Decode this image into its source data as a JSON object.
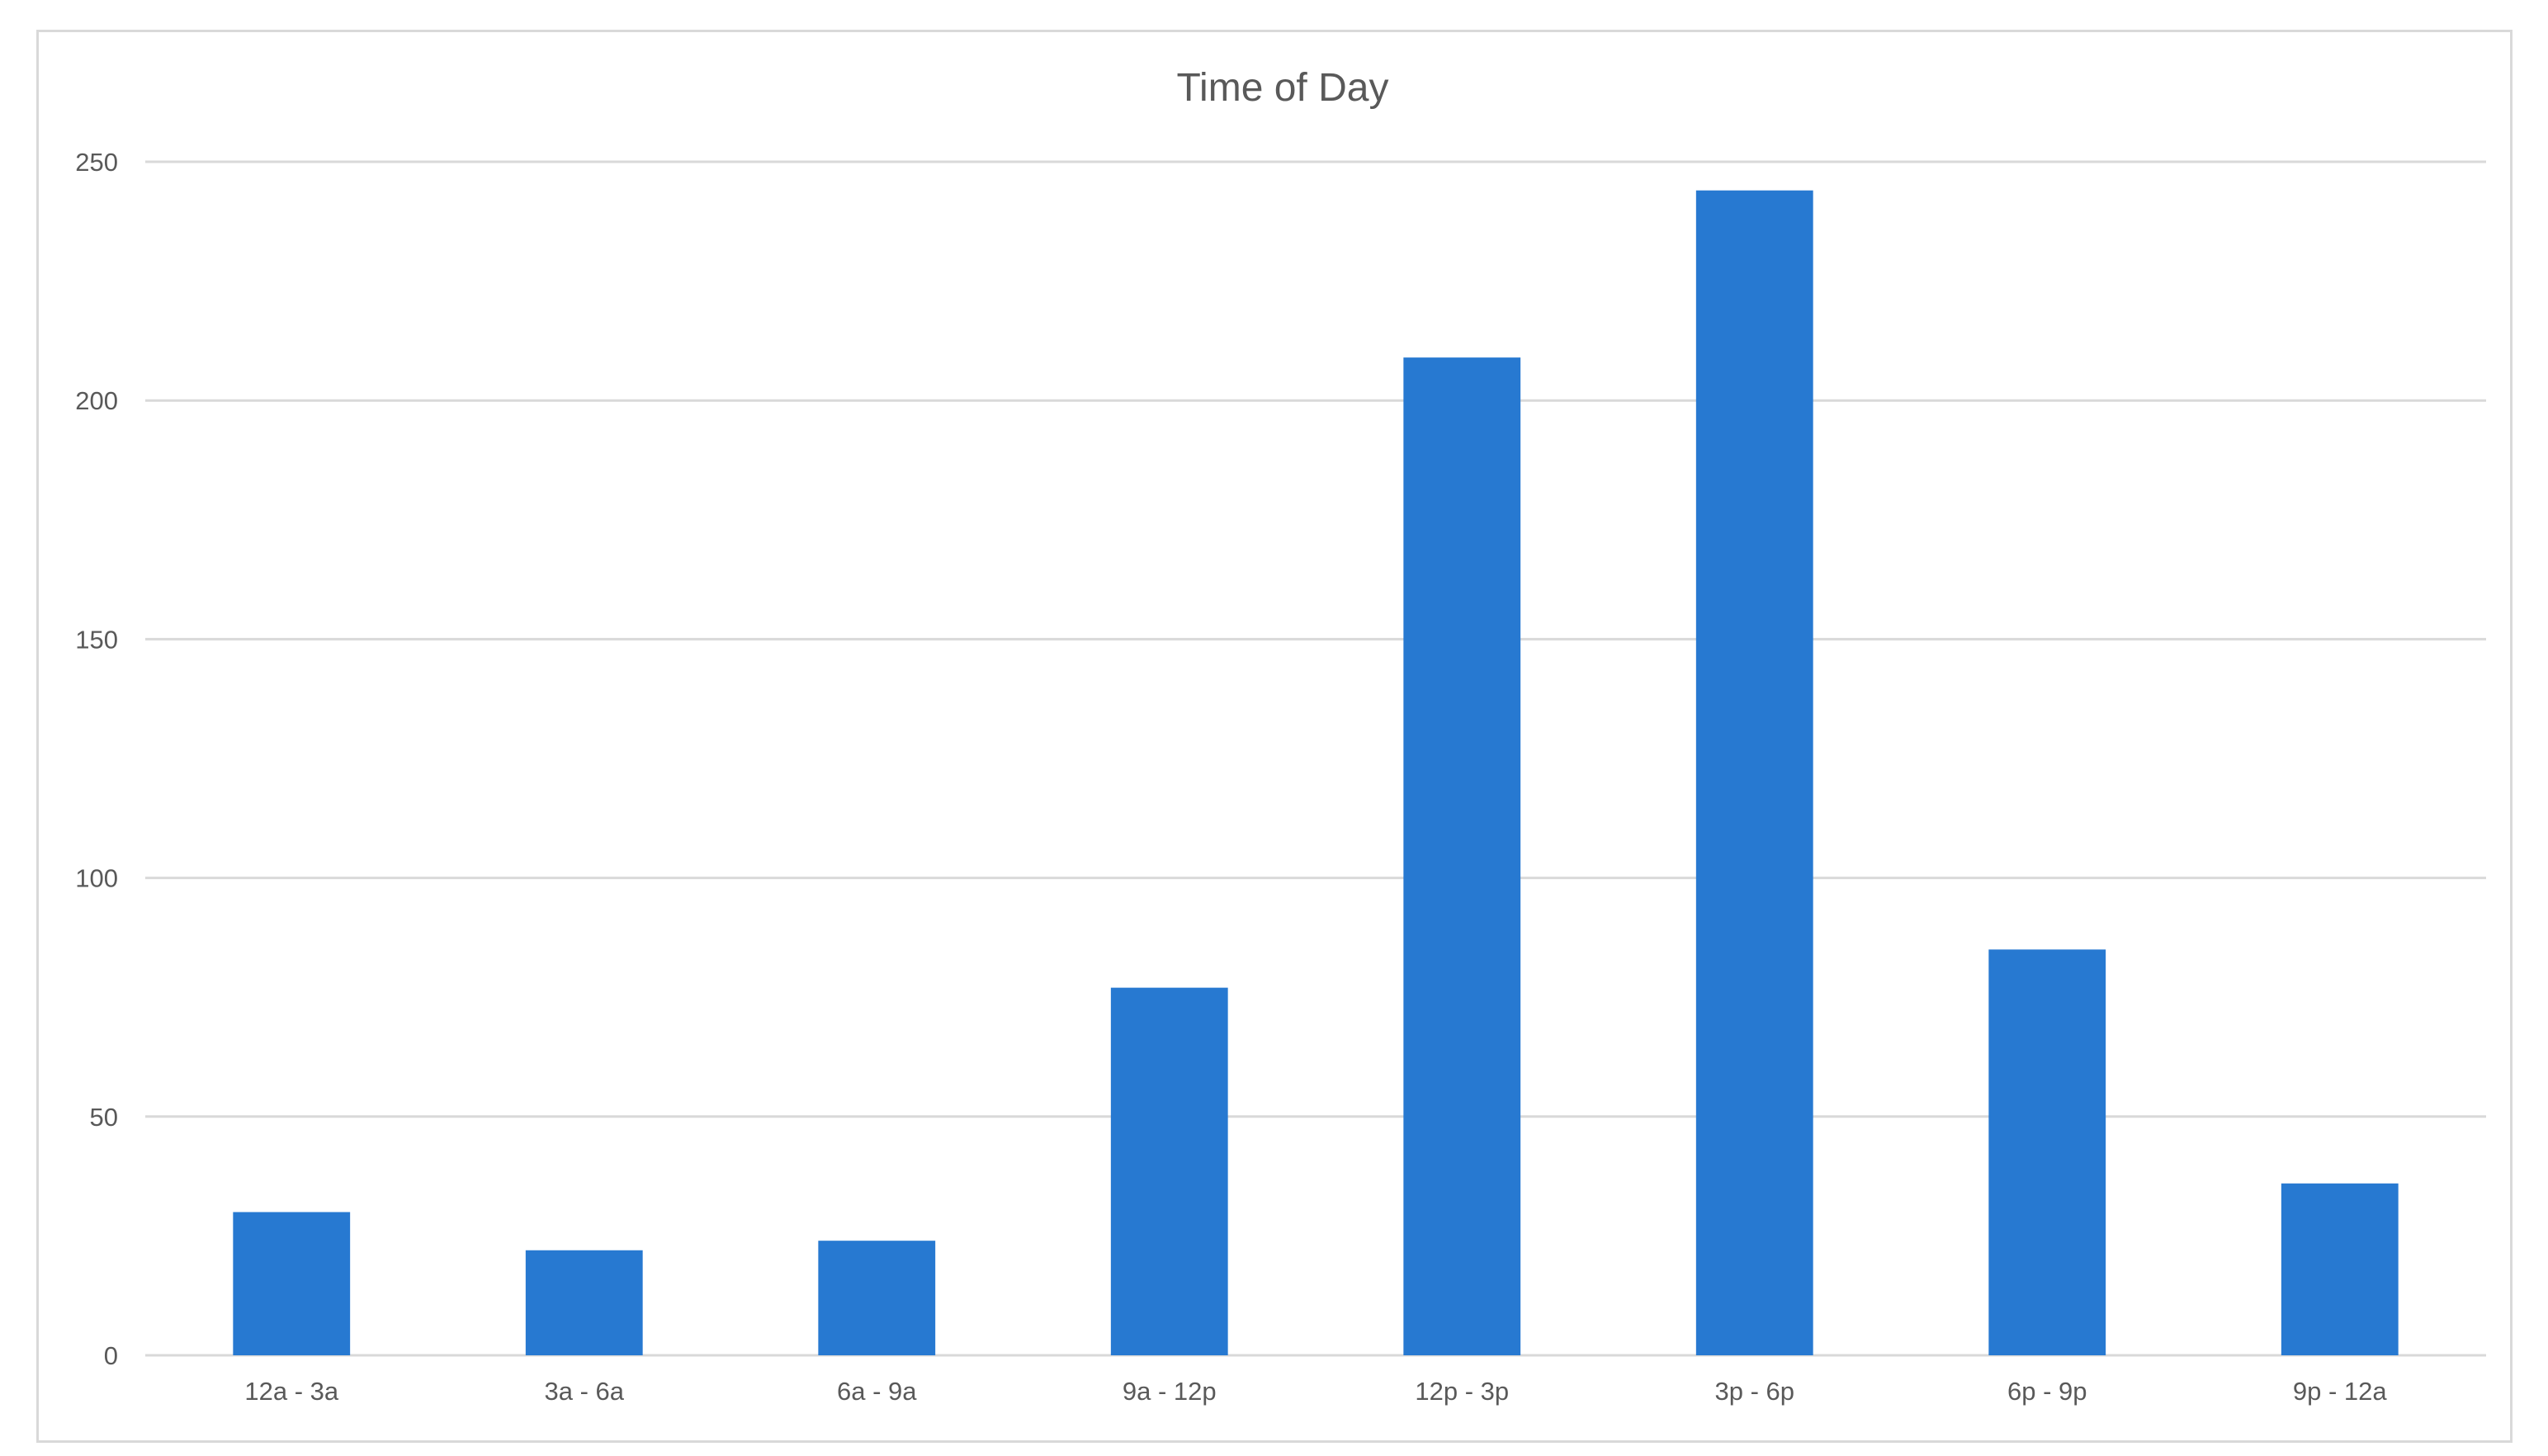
{
  "chart_data": {
    "type": "bar",
    "title": "Time of Day",
    "xlabel": "",
    "ylabel": "",
    "categories": [
      "12a - 3a",
      "3a - 6a",
      "6a - 9a",
      "9a - 12p",
      "12p - 3p",
      "3p - 6p",
      "6p - 9p",
      "9p - 12a"
    ],
    "values": [
      30,
      22,
      24,
      77,
      209,
      244,
      85,
      36
    ],
    "ylim": [
      0,
      250
    ],
    "yticks": [
      0,
      50,
      100,
      150,
      200,
      250
    ],
    "grid": true,
    "legend": "none",
    "bar_color": "#2779d1"
  }
}
